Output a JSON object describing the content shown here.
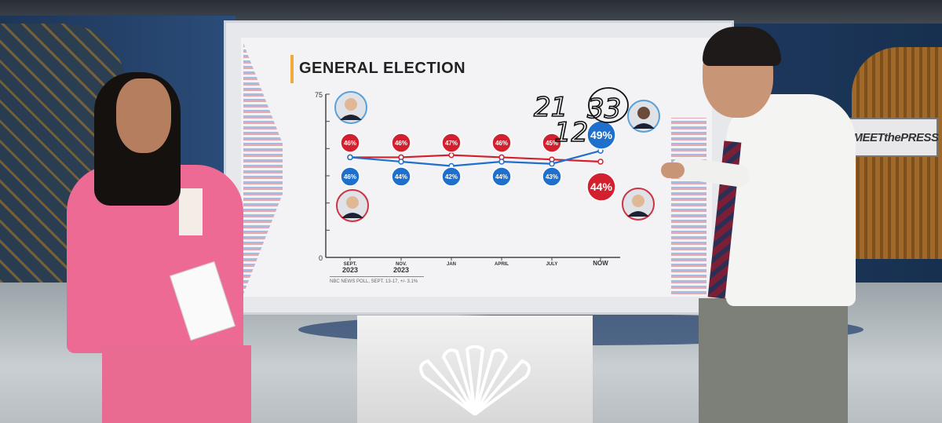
{
  "chart_data": {
    "type": "line",
    "title": "GENERAL ELECTION",
    "categories": [
      [
        "SEPT.",
        "2023"
      ],
      [
        "NOV.",
        "2023"
      ],
      [
        "JAN",
        ""
      ],
      [
        "APRIL",
        ""
      ],
      [
        "JULY",
        ""
      ],
      [
        "NOW",
        ""
      ]
    ],
    "ylim": [
      0,
      75
    ],
    "y_tick_labels": [
      "0",
      "75"
    ],
    "series": [
      {
        "color": "#d3202f",
        "values": [
          46,
          46,
          47,
          46,
          45,
          44
        ],
        "labels": [
          "46%",
          "46%",
          "47%",
          "46%",
          "45%",
          "44%"
        ]
      },
      {
        "color": "#1f6fcc",
        "values": [
          46,
          44,
          42,
          44,
          43,
          49
        ],
        "labels": [
          "46%",
          "44%",
          "42%",
          "44%",
          "43%",
          "49%"
        ]
      }
    ],
    "legend": "candidate photos beside lines",
    "grid": false,
    "footnote": "NBC NEWS POLL, SEPT. 13-17, +/- 3.1%",
    "annotations": [
      "21",
      "33",
      "12"
    ]
  },
  "sign": {
    "logo": "NBC peacock",
    "text": "MEETthePRESS"
  },
  "colors": {
    "red": "#d3202f",
    "blue": "#1f6fcc",
    "accent": "#f2a93b",
    "suit": "#ec6a93"
  }
}
